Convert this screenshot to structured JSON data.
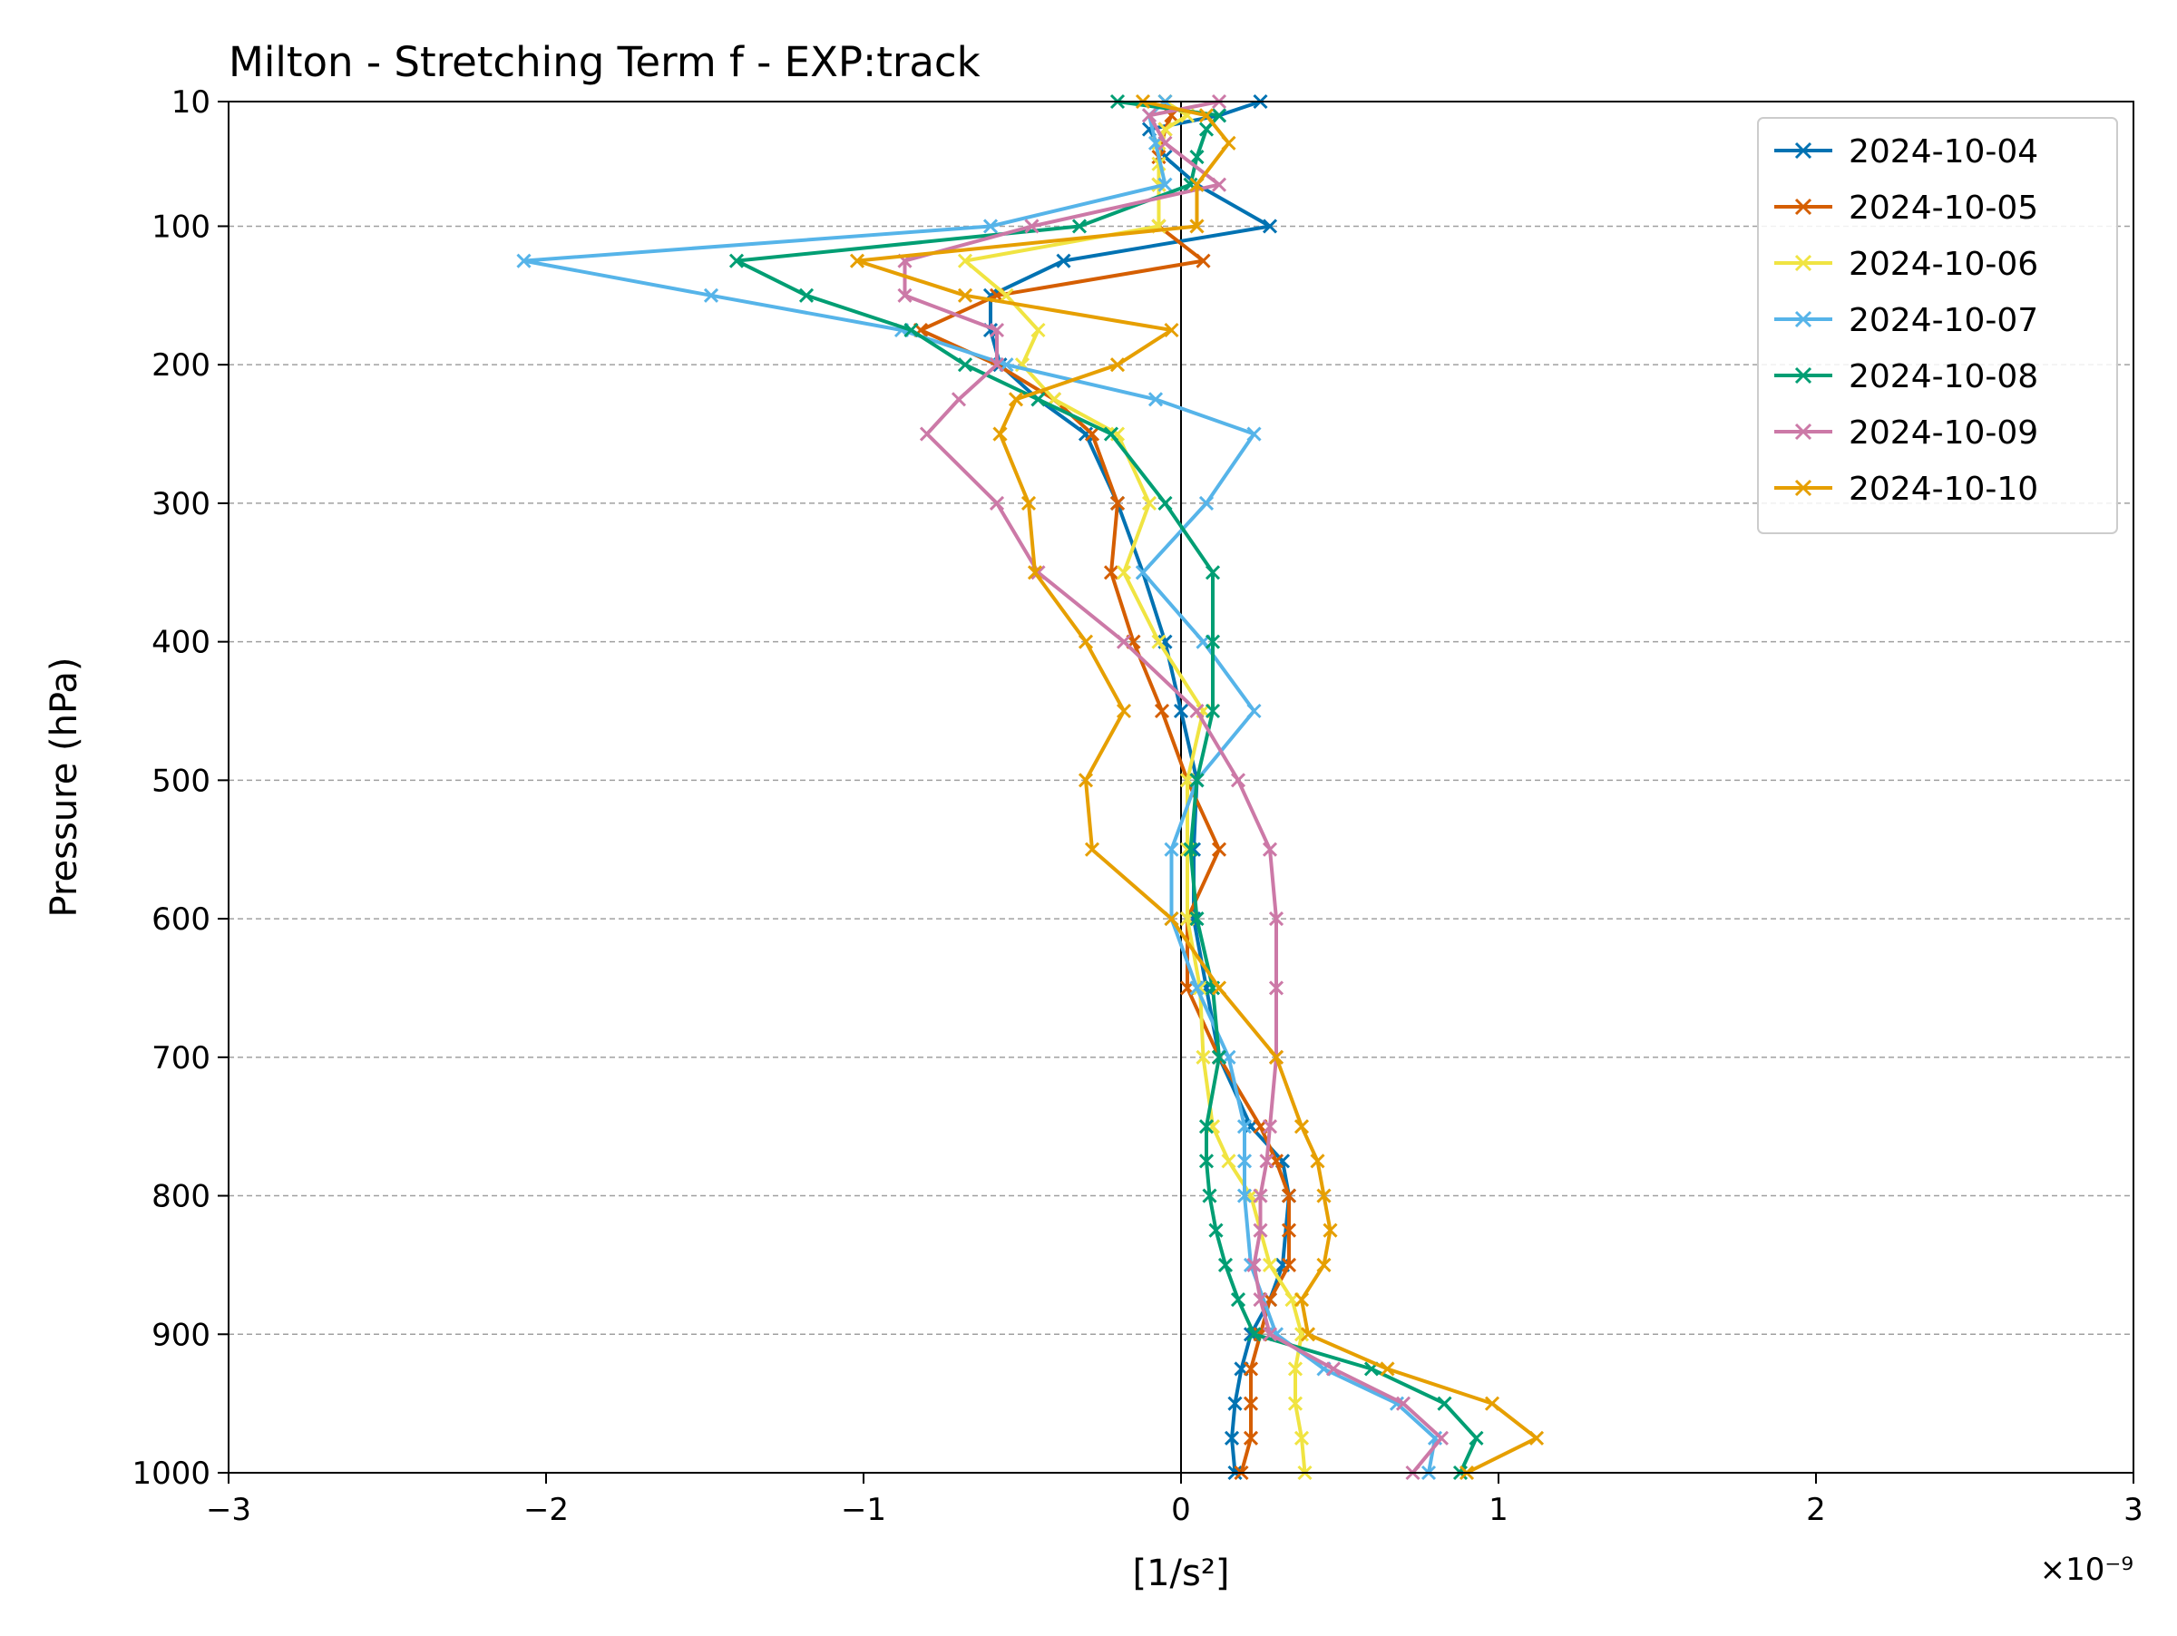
{
  "chart_data": {
    "type": "line",
    "title": "Milton - Stretching Term f - EXP:track",
    "xlabel": "[1/s²]",
    "ylabel": "Pressure (hPa)",
    "x_scale_label": "×10⁻⁹",
    "xlim": [
      -3,
      3
    ],
    "ylim": [
      1000,
      10
    ],
    "y_inverted": true,
    "grid": "horizontal dashed",
    "legend_position": "top-right",
    "x_ticks": [
      -3,
      -2,
      -1,
      0,
      1,
      2,
      3
    ],
    "x_tick_labels": [
      "−3",
      "−2",
      "−1",
      "0",
      "1",
      "2",
      "3"
    ],
    "y_ticks": [
      10,
      100,
      200,
      300,
      400,
      500,
      600,
      700,
      800,
      900,
      1000
    ],
    "y_tick_labels": [
      "10",
      "100",
      "200",
      "300",
      "400",
      "500",
      "600",
      "700",
      "800",
      "900",
      "1000"
    ],
    "units_note": "x values in units of 1e-9 1/s²",
    "series": [
      {
        "name": "2024-10-04",
        "color": "#0072b2",
        "points": [
          [
            0.25,
            10
          ],
          [
            0.12,
            20
          ],
          [
            -0.1,
            30
          ],
          [
            -0.05,
            50
          ],
          [
            0.05,
            70
          ],
          [
            0.28,
            100
          ],
          [
            -0.37,
            125
          ],
          [
            -0.6,
            150
          ],
          [
            -0.6,
            175
          ],
          [
            -0.57,
            200
          ],
          [
            -0.45,
            225
          ],
          [
            -0.3,
            250
          ],
          [
            -0.2,
            300
          ],
          [
            -0.12,
            350
          ],
          [
            -0.05,
            400
          ],
          [
            0,
            450
          ],
          [
            0.05,
            500
          ],
          [
            0.04,
            550
          ],
          [
            0.04,
            600
          ],
          [
            0.08,
            650
          ],
          [
            0.12,
            700
          ],
          [
            0.22,
            750
          ],
          [
            0.32,
            775
          ],
          [
            0.34,
            800
          ],
          [
            0.32,
            850
          ],
          [
            0.28,
            875
          ],
          [
            0.22,
            900
          ],
          [
            0.19,
            925
          ],
          [
            0.17,
            950
          ],
          [
            0.16,
            975
          ],
          [
            0.17,
            1000
          ]
        ]
      },
      {
        "name": "2024-10-05",
        "color": "#d55e00",
        "points": [
          [
            -0.05,
            10
          ],
          [
            -0.03,
            20
          ],
          [
            -0.05,
            30
          ],
          [
            -0.07,
            50
          ],
          [
            -0.07,
            70
          ],
          [
            -0.07,
            100
          ],
          [
            0.07,
            125
          ],
          [
            -0.58,
            150
          ],
          [
            -0.82,
            175
          ],
          [
            -0.58,
            200
          ],
          [
            -0.4,
            225
          ],
          [
            -0.28,
            250
          ],
          [
            -0.2,
            300
          ],
          [
            -0.22,
            350
          ],
          [
            -0.15,
            400
          ],
          [
            -0.06,
            450
          ],
          [
            0.02,
            500
          ],
          [
            0.12,
            550
          ],
          [
            0.02,
            600
          ],
          [
            0.02,
            650
          ],
          [
            0.12,
            700
          ],
          [
            0.25,
            750
          ],
          [
            0.3,
            775
          ],
          [
            0.34,
            800
          ],
          [
            0.34,
            825
          ],
          [
            0.34,
            850
          ],
          [
            0.28,
            875
          ],
          [
            0.25,
            900
          ],
          [
            0.22,
            925
          ],
          [
            0.22,
            950
          ],
          [
            0.22,
            975
          ],
          [
            0.19,
            1000
          ]
        ]
      },
      {
        "name": "2024-10-06",
        "color": "#f0e442",
        "points": [
          [
            -0.05,
            10
          ],
          [
            0.02,
            20
          ],
          [
            -0.05,
            30
          ],
          [
            -0.07,
            40
          ],
          [
            -0.07,
            55
          ],
          [
            -0.07,
            70
          ],
          [
            -0.07,
            100
          ],
          [
            -0.68,
            125
          ],
          [
            -0.55,
            150
          ],
          [
            -0.45,
            175
          ],
          [
            -0.5,
            200
          ],
          [
            -0.4,
            225
          ],
          [
            -0.2,
            250
          ],
          [
            -0.1,
            300
          ],
          [
            -0.18,
            350
          ],
          [
            -0.07,
            400
          ],
          [
            0.07,
            450
          ],
          [
            0.02,
            500
          ],
          [
            0.02,
            550
          ],
          [
            0.02,
            600
          ],
          [
            0.06,
            650
          ],
          [
            0.07,
            700
          ],
          [
            0.1,
            750
          ],
          [
            0.15,
            775
          ],
          [
            0.22,
            800
          ],
          [
            0.28,
            850
          ],
          [
            0.35,
            875
          ],
          [
            0.38,
            900
          ],
          [
            0.36,
            925
          ],
          [
            0.36,
            950
          ],
          [
            0.38,
            975
          ],
          [
            0.39,
            1000
          ]
        ]
      },
      {
        "name": "2024-10-07",
        "color": "#56b4e9",
        "points": [
          [
            -0.05,
            10
          ],
          [
            -0.1,
            20
          ],
          [
            -0.08,
            40
          ],
          [
            -0.05,
            70
          ],
          [
            -0.6,
            100
          ],
          [
            -2.07,
            125
          ],
          [
            -1.48,
            150
          ],
          [
            -0.88,
            175
          ],
          [
            -0.55,
            200
          ],
          [
            -0.08,
            225
          ],
          [
            0.23,
            250
          ],
          [
            0.08,
            300
          ],
          [
            -0.12,
            350
          ],
          [
            0.07,
            400
          ],
          [
            0.23,
            450
          ],
          [
            0.05,
            500
          ],
          [
            -0.03,
            550
          ],
          [
            -0.03,
            600
          ],
          [
            0.05,
            650
          ],
          [
            0.15,
            700
          ],
          [
            0.2,
            750
          ],
          [
            0.2,
            775
          ],
          [
            0.2,
            800
          ],
          [
            0.22,
            850
          ],
          [
            0.3,
            900
          ],
          [
            0.45,
            925
          ],
          [
            0.68,
            950
          ],
          [
            0.8,
            975
          ],
          [
            0.78,
            1000
          ]
        ]
      },
      {
        "name": "2024-10-08",
        "color": "#009e73",
        "points": [
          [
            -0.2,
            10
          ],
          [
            0.12,
            20
          ],
          [
            0.08,
            30
          ],
          [
            0.05,
            50
          ],
          [
            0.03,
            70
          ],
          [
            -0.32,
            100
          ],
          [
            -1.4,
            125
          ],
          [
            -1.18,
            150
          ],
          [
            -0.85,
            175
          ],
          [
            -0.68,
            200
          ],
          [
            -0.45,
            225
          ],
          [
            -0.22,
            250
          ],
          [
            -0.05,
            300
          ],
          [
            0.1,
            350
          ],
          [
            0.1,
            400
          ],
          [
            0.1,
            450
          ],
          [
            0.05,
            500
          ],
          [
            0.03,
            550
          ],
          [
            0.05,
            600
          ],
          [
            0.1,
            650
          ],
          [
            0.12,
            700
          ],
          [
            0.08,
            750
          ],
          [
            0.08,
            775
          ],
          [
            0.09,
            800
          ],
          [
            0.11,
            825
          ],
          [
            0.14,
            850
          ],
          [
            0.18,
            875
          ],
          [
            0.23,
            900
          ],
          [
            0.6,
            925
          ],
          [
            0.83,
            950
          ],
          [
            0.93,
            975
          ],
          [
            0.88,
            1000
          ]
        ]
      },
      {
        "name": "2024-10-09",
        "color": "#cc79a7",
        "points": [
          [
            0.12,
            10
          ],
          [
            -0.1,
            20
          ],
          [
            -0.05,
            40
          ],
          [
            0.12,
            70
          ],
          [
            -0.47,
            100
          ],
          [
            -0.87,
            125
          ],
          [
            -0.87,
            150
          ],
          [
            -0.58,
            175
          ],
          [
            -0.58,
            200
          ],
          [
            -0.7,
            225
          ],
          [
            -0.8,
            250
          ],
          [
            -0.58,
            300
          ],
          [
            -0.45,
            350
          ],
          [
            -0.18,
            400
          ],
          [
            0.05,
            450
          ],
          [
            0.18,
            500
          ],
          [
            0.28,
            550
          ],
          [
            0.3,
            600
          ],
          [
            0.3,
            650
          ],
          [
            0.3,
            700
          ],
          [
            0.28,
            750
          ],
          [
            0.27,
            775
          ],
          [
            0.25,
            800
          ],
          [
            0.25,
            825
          ],
          [
            0.23,
            850
          ],
          [
            0.25,
            875
          ],
          [
            0.28,
            900
          ],
          [
            0.48,
            925
          ],
          [
            0.7,
            950
          ],
          [
            0.82,
            975
          ],
          [
            0.73,
            1000
          ]
        ]
      },
      {
        "name": "2024-10-10",
        "color": "#e69f00",
        "points": [
          [
            -0.12,
            10
          ],
          [
            0.08,
            20
          ],
          [
            0.15,
            40
          ],
          [
            0.05,
            70
          ],
          [
            0.05,
            100
          ],
          [
            -1.02,
            125
          ],
          [
            -0.68,
            150
          ],
          [
            -0.03,
            175
          ],
          [
            -0.2,
            200
          ],
          [
            -0.52,
            225
          ],
          [
            -0.57,
            250
          ],
          [
            -0.48,
            300
          ],
          [
            -0.46,
            350
          ],
          [
            -0.3,
            400
          ],
          [
            -0.18,
            450
          ],
          [
            -0.3,
            500
          ],
          [
            -0.28,
            550
          ],
          [
            -0.03,
            600
          ],
          [
            0.12,
            650
          ],
          [
            0.3,
            700
          ],
          [
            0.38,
            750
          ],
          [
            0.43,
            775
          ],
          [
            0.45,
            800
          ],
          [
            0.47,
            825
          ],
          [
            0.45,
            850
          ],
          [
            0.38,
            875
          ],
          [
            0.4,
            900
          ],
          [
            0.65,
            925
          ],
          [
            0.98,
            950
          ],
          [
            1.12,
            975
          ],
          [
            0.9,
            1000
          ]
        ]
      }
    ]
  }
}
